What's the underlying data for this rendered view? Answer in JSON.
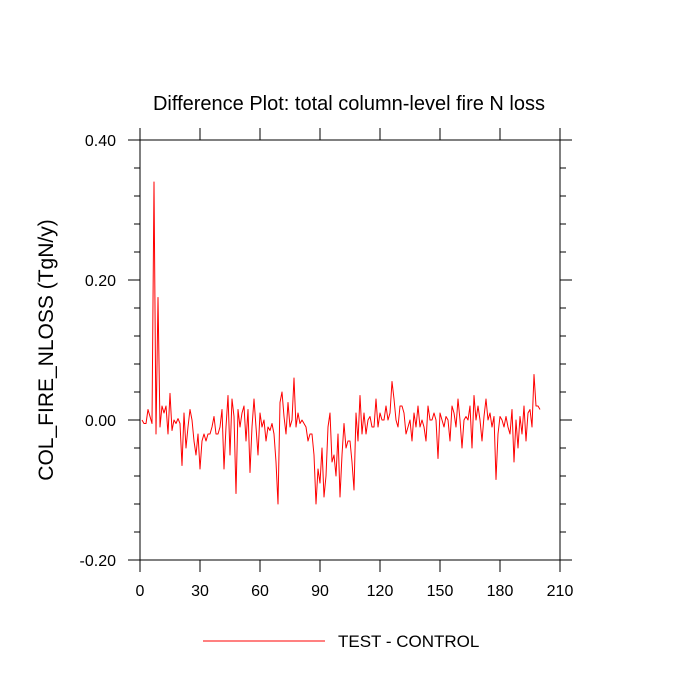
{
  "chart_data": {
    "type": "line",
    "title": "Difference Plot: total column-level fire N loss",
    "xlabel": "",
    "ylabel": "COL_FIRE_NLOSS  (TgN/y)",
    "xlim": [
      0,
      210
    ],
    "ylim": [
      -0.2,
      0.4
    ],
    "xticks": [
      0,
      30,
      60,
      90,
      120,
      150,
      180,
      210
    ],
    "xtick_labels": [
      "0",
      "30",
      "60",
      "90",
      "120",
      "150",
      "180",
      "210"
    ],
    "yticks": [
      -0.2,
      0.0,
      0.2,
      0.4
    ],
    "ytick_labels": [
      "-0.20",
      "0.00",
      "0.20",
      "0.40"
    ],
    "grid": false,
    "legend_position": "bottom",
    "series": [
      {
        "name": "TEST - CONTROL",
        "color": "#ff0000",
        "x": [
          1,
          2,
          3,
          4,
          5,
          6,
          7,
          8,
          9,
          10,
          11,
          12,
          13,
          14,
          15,
          16,
          17,
          18,
          19,
          20,
          21,
          22,
          23,
          24,
          25,
          26,
          27,
          28,
          29,
          30,
          31,
          32,
          33,
          34,
          35,
          36,
          37,
          38,
          39,
          40,
          41,
          42,
          43,
          44,
          45,
          46,
          47,
          48,
          49,
          50,
          51,
          52,
          53,
          54,
          55,
          56,
          57,
          58,
          59,
          60,
          61,
          62,
          63,
          64,
          65,
          66,
          67,
          68,
          69,
          70,
          71,
          72,
          73,
          74,
          75,
          76,
          77,
          78,
          79,
          80,
          81,
          82,
          83,
          84,
          85,
          86,
          87,
          88,
          89,
          90,
          91,
          92,
          93,
          94,
          95,
          96,
          97,
          98,
          99,
          100,
          101,
          102,
          103,
          104,
          105,
          106,
          107,
          108,
          109,
          110,
          111,
          112,
          113,
          114,
          115,
          116,
          117,
          118,
          119,
          120,
          121,
          122,
          123,
          124,
          125,
          126,
          127,
          128,
          129,
          130,
          131,
          132,
          133,
          134,
          135,
          136,
          137,
          138,
          139,
          140,
          141,
          142,
          143,
          144,
          145,
          146,
          147,
          148,
          149,
          150,
          151,
          152,
          153,
          154,
          155,
          156,
          157,
          158,
          159,
          160,
          161,
          162,
          163,
          164,
          165,
          166,
          167,
          168,
          169,
          170,
          171,
          172,
          173,
          174,
          175,
          176,
          177,
          178,
          179,
          180,
          181,
          182,
          183,
          184,
          185,
          186,
          187,
          188,
          189,
          190,
          191,
          192,
          193,
          194,
          195,
          196,
          197,
          198,
          199,
          200
        ],
        "values": [
          0.0,
          -0.005,
          -0.005,
          0.015,
          0.005,
          -0.005,
          0.34,
          -0.02,
          0.175,
          -0.01,
          0.02,
          0.01,
          0.02,
          -0.02,
          0.038,
          -0.015,
          0.0,
          -0.005,
          0.002,
          -0.005,
          -0.065,
          0.01,
          -0.04,
          -0.01,
          0.015,
          0.0,
          -0.03,
          -0.05,
          -0.02,
          -0.07,
          -0.03,
          -0.02,
          -0.03,
          -0.02,
          -0.02,
          -0.01,
          0.005,
          -0.02,
          -0.02,
          -0.01,
          0.015,
          -0.07,
          -0.01,
          0.035,
          -0.05,
          0.03,
          0.005,
          -0.105,
          0.015,
          -0.01,
          0.01,
          0.02,
          -0.03,
          0.015,
          -0.075,
          -0.01,
          0.03,
          -0.01,
          -0.05,
          0.01,
          -0.01,
          0.0,
          -0.03,
          -0.01,
          -0.015,
          -0.005,
          -0.02,
          -0.06,
          -0.12,
          0.025,
          0.04,
          0.005,
          -0.02,
          0.025,
          -0.01,
          0.0,
          0.06,
          -0.01,
          0.01,
          -0.005,
          0.0,
          -0.005,
          -0.01,
          -0.03,
          -0.02,
          -0.02,
          -0.05,
          -0.12,
          -0.07,
          -0.09,
          -0.04,
          -0.11,
          -0.08,
          -0.01,
          0.01,
          -0.06,
          -0.05,
          -0.08,
          -0.02,
          -0.11,
          -0.05,
          -0.005,
          -0.04,
          -0.03,
          -0.03,
          -0.06,
          -0.1,
          0.01,
          -0.03,
          0.035,
          -0.02,
          0.01,
          -0.02,
          0.0,
          0.005,
          -0.01,
          -0.01,
          0.03,
          -0.01,
          0.01,
          0.0,
          0.0,
          0.02,
          0.0,
          0.01,
          0.055,
          0.03,
          0.0,
          -0.01,
          0.02,
          0.02,
          0.01,
          -0.02,
          -0.01,
          0.0,
          -0.03,
          0.01,
          -0.01,
          0.02,
          -0.01,
          0.0,
          -0.01,
          -0.03,
          0.02,
          0.0,
          0.0,
          0.01,
          0.0,
          -0.055,
          0.01,
          0.0,
          -0.01,
          0.005,
          0.0,
          -0.03,
          0.02,
          0.01,
          -0.01,
          0.03,
          0.0,
          -0.04,
          0.0,
          0.005,
          0.0,
          0.02,
          -0.04,
          0.035,
          0.0,
          0.02,
          0.0,
          -0.03,
          0.005,
          0.03,
          0.0,
          0.01,
          -0.01,
          0.005,
          -0.085,
          -0.02,
          0.005,
          0.0,
          -0.01,
          0.005,
          -0.01,
          -0.02,
          0.015,
          -0.06,
          0.0,
          -0.04,
          0.005,
          -0.02,
          0.02,
          -0.03,
          0.01,
          0.015,
          -0.01,
          0.065,
          0.02,
          0.02,
          0.015
        ]
      }
    ]
  }
}
